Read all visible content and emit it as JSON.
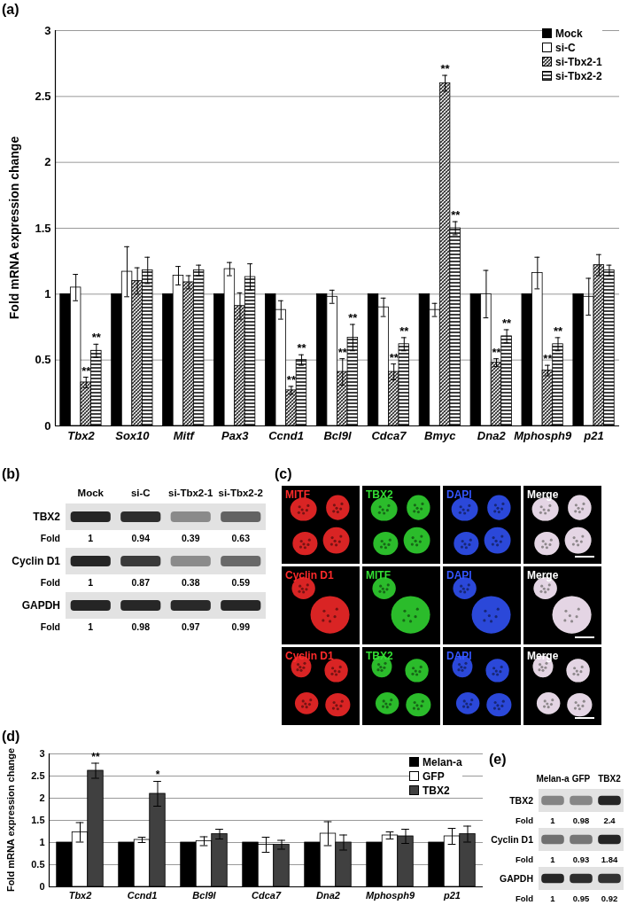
{
  "chart_data": [
    {
      "type": "bar",
      "title": "(a)",
      "y_label": "Fold mRNA expression change",
      "categories": [
        "Tbx2",
        "Sox10",
        "Mitf",
        "Pax3",
        "Ccnd1",
        "Bcl9l",
        "Cdca7",
        "Bmyc",
        "Dna2",
        "Mphosph9",
        "p21"
      ],
      "series": [
        {
          "name": "Mock",
          "color": "#000000",
          "values": [
            1,
            1,
            1,
            1,
            1,
            1,
            1,
            1,
            1,
            1,
            1
          ]
        },
        {
          "name": "si-C",
          "color": "#ffffff",
          "values": [
            1.05,
            1.17,
            1.14,
            1.19,
            0.88,
            0.98,
            0.9,
            0.88,
            1.0,
            1.16,
            0.98
          ],
          "errors": [
            0.1,
            0.19,
            0.07,
            0.05,
            0.07,
            0.05,
            0.07,
            0.05,
            0.18,
            0.12,
            0.14
          ]
        },
        {
          "name": "si-Tbx2-1",
          "color": "#333333",
          "values": [
            0.33,
            1.1,
            1.09,
            0.91,
            0.27,
            0.41,
            0.41,
            2.6,
            0.48,
            0.42,
            1.22
          ],
          "errors": [
            0.04,
            0.1,
            0.05,
            0.1,
            0.03,
            0.1,
            0.06,
            0.06,
            0.03,
            0.04,
            0.08
          ],
          "significance": [
            "**",
            null,
            null,
            null,
            "**",
            "**",
            "**",
            "**",
            "**",
            "**",
            null
          ]
        },
        {
          "name": "si-Tbx2-2",
          "color": "#000000",
          "values": [
            0.57,
            1.18,
            1.18,
            1.13,
            0.5,
            0.67,
            0.62,
            1.5,
            0.68,
            0.62,
            1.18
          ],
          "errors": [
            0.05,
            0.1,
            0.04,
            0.1,
            0.04,
            0.1,
            0.05,
            0.05,
            0.05,
            0.05,
            0.04
          ],
          "significance": [
            "**",
            null,
            null,
            null,
            "**",
            "**",
            "**",
            "**",
            "**",
            "**",
            null
          ]
        }
      ],
      "ylim": [
        0,
        3
      ],
      "yticks": [
        0,
        0.5,
        1,
        1.5,
        2,
        2.5,
        3
      ],
      "grid": true,
      "legend": "upper right"
    },
    {
      "type": "bar",
      "title": "(d)",
      "y_label": "Fold mRNA expression change",
      "categories": [
        "Tbx2",
        "Ccnd1",
        "Bcl9l",
        "Cdca7",
        "Dna2",
        "Mphosph9",
        "p21"
      ],
      "series": [
        {
          "name": "Melan-a",
          "color": "#000000",
          "values": [
            1,
            1,
            1,
            1,
            1,
            1,
            1
          ]
        },
        {
          "name": "GFP",
          "color": "#ffffff",
          "values": [
            1.23,
            1.06,
            1.03,
            0.95,
            1.2,
            1.16,
            1.14
          ],
          "errors": [
            0.22,
            0.06,
            0.1,
            0.17,
            0.27,
            0.08,
            0.18
          ]
        },
        {
          "name": "TBX2",
          "color": "#404040",
          "values": [
            2.62,
            2.1,
            1.19,
            0.95,
            1.0,
            1.14,
            1.19
          ],
          "errors": [
            0.17,
            0.28,
            0.11,
            0.1,
            0.17,
            0.16,
            0.18
          ],
          "significance": [
            "**",
            "*",
            null,
            null,
            null,
            null,
            null
          ]
        }
      ],
      "ylim": [
        0,
        3
      ],
      "yticks": [
        0,
        0.5,
        1,
        1.5,
        2,
        2.5,
        3
      ],
      "grid": true,
      "legend": "upper right"
    }
  ],
  "blots": [
    {
      "title": "(b)",
      "lanes": [
        "Mock",
        "si-C",
        "si-Tbx2-1",
        "si-Tbx2-2"
      ],
      "fold_label": "Fold",
      "rows": [
        {
          "name": "TBX2",
          "fold": [
            1,
            0.94,
            0.39,
            0.63
          ]
        },
        {
          "name": "Cyclin D1",
          "fold": [
            1,
            0.87,
            0.38,
            0.59
          ]
        },
        {
          "name": "GAPDH",
          "fold": [
            1,
            0.98,
            0.97,
            0.99
          ]
        }
      ]
    },
    {
      "title": "(e)",
      "lanes": [
        "Melan-a",
        "GFP",
        "TBX2"
      ],
      "fold_label": "Fold",
      "rows": [
        {
          "name": "TBX2",
          "fold": [
            1,
            0.98,
            2.4
          ]
        },
        {
          "name": "Cyclin D1",
          "fold": [
            1,
            0.93,
            1.84
          ]
        },
        {
          "name": "GAPDH",
          "fold": [
            1,
            0.95,
            0.92
          ]
        }
      ]
    }
  ],
  "images": {
    "title": "(c)",
    "panels": [
      [
        {
          "label": "MITF",
          "color": "#ff2a2a"
        },
        {
          "label": "TBX2",
          "color": "#33dd33"
        },
        {
          "label": "DAPI",
          "color": "#3355ff"
        },
        {
          "label": "Merge",
          "color": "#ffffff"
        }
      ],
      [
        {
          "label": "Cyclin D1",
          "color": "#ff2a2a"
        },
        {
          "label": "MITF",
          "color": "#33dd33"
        },
        {
          "label": "DAPI",
          "color": "#3355ff"
        },
        {
          "label": "Merge",
          "color": "#ffffff"
        }
      ],
      [
        {
          "label": "Cyclin D1",
          "color": "#ff2a2a"
        },
        {
          "label": "TBX2",
          "color": "#33dd33"
        },
        {
          "label": "DAPI",
          "color": "#3355ff"
        },
        {
          "label": "Merge",
          "color": "#ffffff"
        }
      ]
    ]
  }
}
